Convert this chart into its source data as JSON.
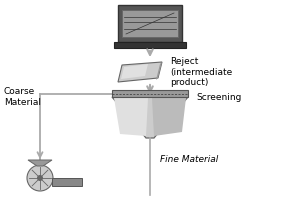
{
  "bg_color": "#ffffff",
  "labels": {
    "reject": "Reject\n(intermediate\nproduct)",
    "screening": "Screening",
    "coarse": "Coarse\nMaterial",
    "fine": "Fine Material"
  },
  "font_size": 6.5,
  "arrow_color": "#aaaaaa",
  "lc": "#cccccc",
  "dc": "#666666",
  "mc": "#999999",
  "dark": "#444444",
  "white": "#ffffff"
}
